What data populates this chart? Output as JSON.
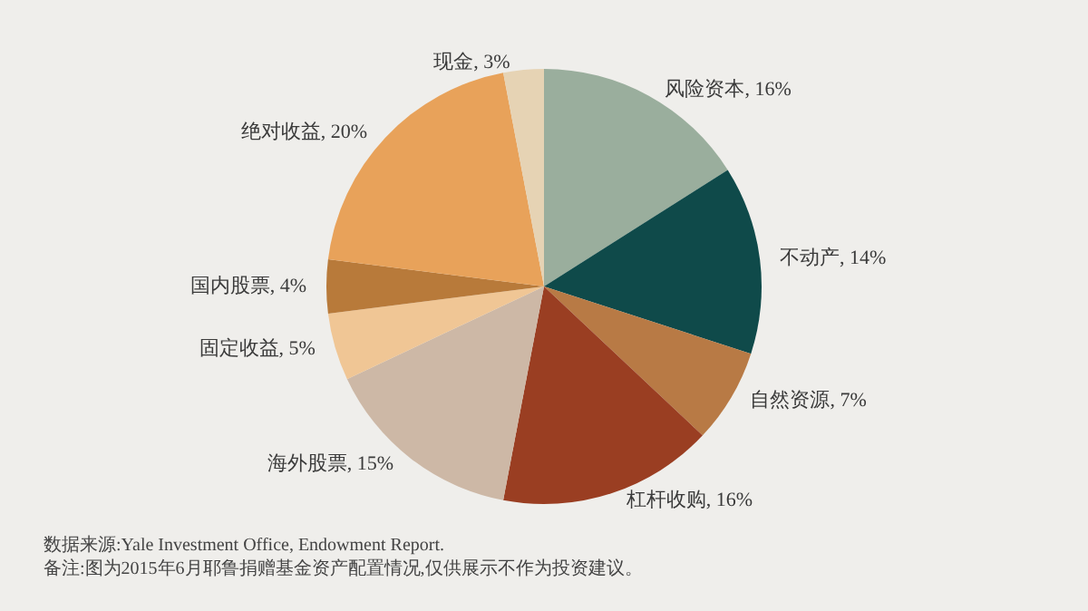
{
  "chart_data": {
    "type": "pie",
    "categories": [
      "风险资本",
      "不动产",
      "自然资源",
      "杠杆收购",
      "海外股票",
      "固定收益",
      "国内股票",
      "绝对收益",
      "现金"
    ],
    "values": [
      16,
      14,
      7,
      16,
      15,
      5,
      4,
      20,
      3
    ],
    "value_labels": [
      "16%",
      "14%",
      "7%",
      "16%",
      "15%",
      "5%",
      "4%",
      "20%",
      "3%"
    ],
    "colors": [
      "#9aae9d",
      "#0f4a4a",
      "#b87a45",
      "#9a3e22",
      "#cdb8a6",
      "#f0c695",
      "#b87a3a",
      "#e8a25a",
      "#e6d3b4"
    ],
    "annotations": [
      "数据来源:Yale Investment Office, Endowment Report.",
      "备注:图为2015年6月耶鲁捐赠基金资产配置情况,仅供展示不作为投资建议。"
    ],
    "legend": false
  }
}
